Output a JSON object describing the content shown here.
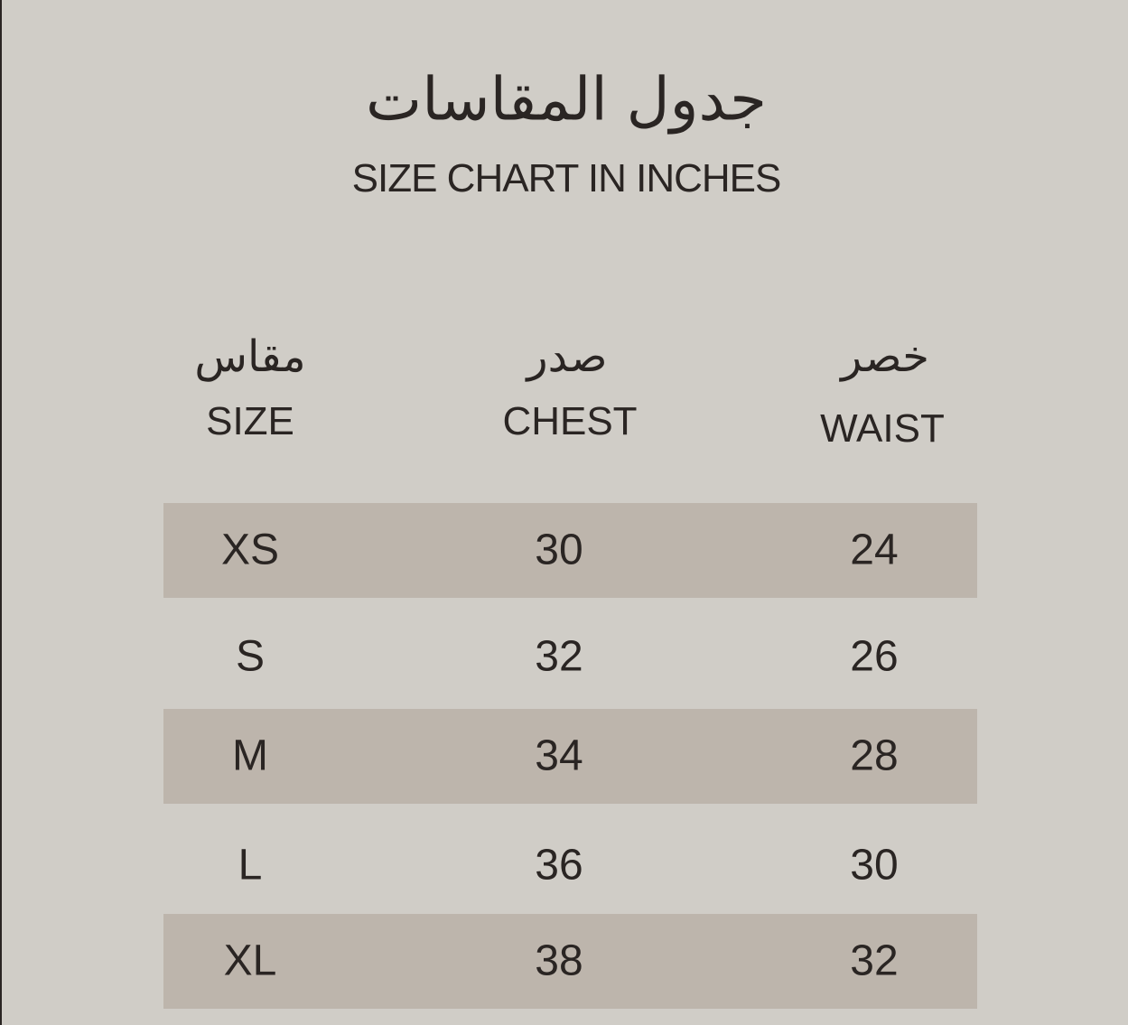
{
  "title_ar": "جدول المقاسات",
  "title_en": "SIZE CHART IN INCHES",
  "columns": [
    {
      "ar": "مقاس",
      "en": "SIZE"
    },
    {
      "ar": "صدر",
      "en": "CHEST"
    },
    {
      "ar": "خصر",
      "en": "WAIST"
    }
  ],
  "rows": [
    [
      "XS",
      "30",
      "24"
    ],
    [
      "S",
      "32",
      "26"
    ],
    [
      "M",
      "34",
      "28"
    ],
    [
      "L",
      "36",
      "30"
    ],
    [
      "XL",
      "38",
      "32"
    ]
  ],
  "colors": {
    "background": "#d0cdc7",
    "band": "#bdb5ac",
    "text": "#2a2523"
  }
}
